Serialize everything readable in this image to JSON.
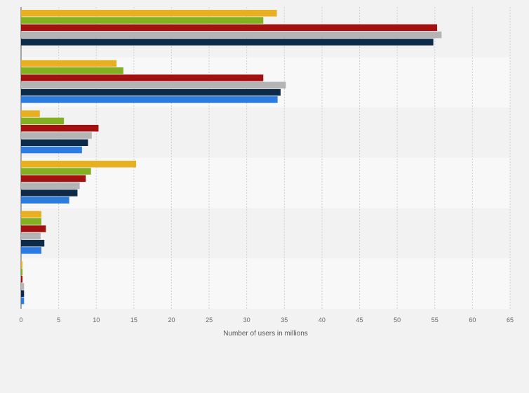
{
  "chart_data": {
    "type": "bar",
    "orientation": "horizontal",
    "title": "",
    "xlabel": "Number of users in millions",
    "ylabel": "",
    "xlim": [
      0,
      65
    ],
    "x_ticks": [
      "0",
      "5",
      "10",
      "15",
      "20",
      "25",
      "30",
      "35",
      "40",
      "45",
      "50",
      "55",
      "60",
      "65"
    ],
    "grid": true,
    "legend": "none",
    "categories": [
      "",
      "",
      "",
      "",
      "",
      ""
    ],
    "series": [
      {
        "color": "#e8b020",
        "values": [
          34.0,
          12.7,
          2.5,
          15.3,
          2.7,
          0.2
        ]
      },
      {
        "color": "#82b020",
        "values": [
          32.2,
          13.6,
          5.7,
          9.3,
          2.7,
          0.2
        ]
      },
      {
        "color": "#a31010",
        "values": [
          55.3,
          32.2,
          10.3,
          8.6,
          3.3,
          0.2
        ]
      },
      {
        "color": "#b4b4b4",
        "values": [
          55.9,
          35.2,
          9.4,
          7.8,
          2.6,
          0.4
        ]
      },
      {
        "color": "#0d2a48",
        "values": [
          54.8,
          34.5,
          8.9,
          7.5,
          3.1,
          0.4
        ]
      },
      {
        "color": "#2c7be0",
        "values": [
          null,
          34.1,
          8.1,
          6.4,
          2.7,
          0.4
        ]
      }
    ]
  }
}
